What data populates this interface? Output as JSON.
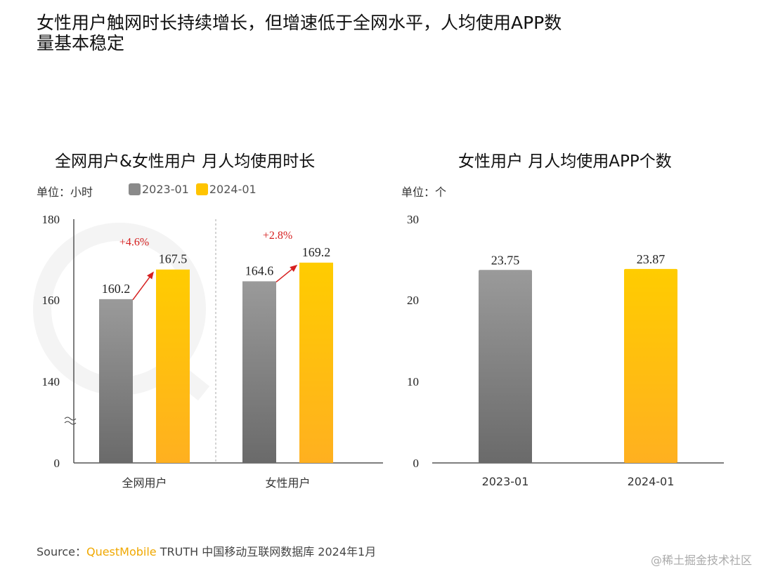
{
  "title": "女性用户触网时长持续增长，但增速低于全网水平，人均使用APP数量基本稳定",
  "legend": [
    {
      "label": "2023-01",
      "color": "#8a8a8a"
    },
    {
      "label": "2024-01",
      "color": "#ffc400"
    }
  ],
  "chart_data": [
    {
      "type": "bar",
      "title": "全网用户&女性用户 月人均使用时长",
      "unit": "单位：小时",
      "categories": [
        "全网用户",
        "女性用户"
      ],
      "series": [
        {
          "name": "2023-01",
          "values": [
            160.2,
            164.6
          ]
        },
        {
          "name": "2024-01",
          "values": [
            167.5,
            169.2
          ]
        }
      ],
      "growth": [
        "+4.6%",
        "+2.8%"
      ],
      "yticks": [
        "180",
        "160",
        "140",
        "0"
      ],
      "ylim": [
        140,
        180
      ],
      "axis_break": true
    },
    {
      "type": "bar",
      "title": "女性用户 月人均使用APP个数",
      "unit": "单位：个",
      "categories": [
        "2023-01",
        "2024-01"
      ],
      "values": [
        23.75,
        23.87
      ],
      "yticks": [
        "30",
        "20",
        "10",
        "0"
      ],
      "ylim": [
        0,
        30
      ]
    }
  ],
  "footer": {
    "source_label": "Source：",
    "brand": "QuestMobile",
    "rest": " TRUTH 中国移动互联网数据库 2024年1月"
  },
  "watermark": "@稀土掘金技术社区",
  "bg_watermark": "QUEST MOBILE"
}
